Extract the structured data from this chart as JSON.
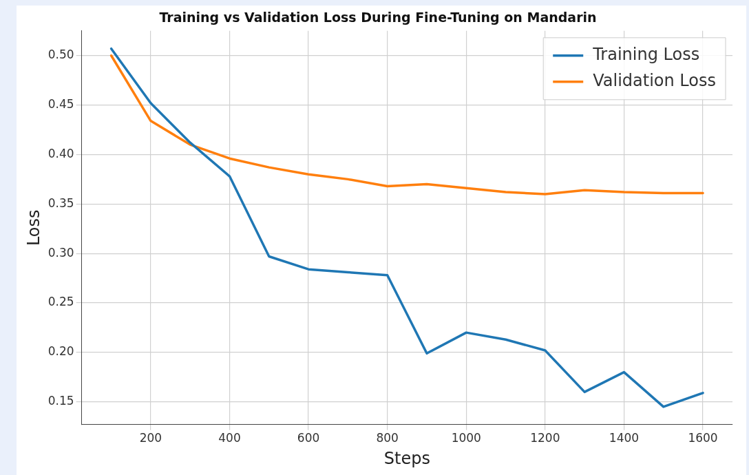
{
  "chart_data": {
    "type": "line",
    "title": "Training vs Validation Loss During Fine-Tuning on Mandarin",
    "xlabel": "Steps",
    "ylabel": "Loss",
    "x": [
      100,
      200,
      300,
      400,
      500,
      600,
      700,
      800,
      900,
      1000,
      1100,
      1200,
      1300,
      1400,
      1500,
      1600
    ],
    "series": [
      {
        "name": "Training Loss",
        "color": "#1f77b4",
        "values": [
          0.507,
          0.452,
          0.412,
          0.378,
          0.297,
          0.284,
          0.281,
          0.278,
          0.199,
          0.22,
          0.213,
          0.202,
          0.16,
          0.18,
          0.145,
          0.159
        ]
      },
      {
        "name": "Validation Loss",
        "color": "#ff7f0e",
        "values": [
          0.5,
          0.434,
          0.41,
          0.396,
          0.387,
          0.38,
          0.375,
          0.368,
          0.37,
          0.366,
          0.362,
          0.36,
          0.364,
          0.362,
          0.361,
          0.361
        ]
      }
    ],
    "xlim": [
      25,
      1675
    ],
    "xticks": [
      200,
      400,
      600,
      800,
      1000,
      1200,
      1400,
      1600
    ],
    "ylim": [
      0.127,
      0.525
    ],
    "yticks": [
      0.15,
      {
        "value": 0.2,
        "label": "0.20"
      },
      0.25,
      {
        "value": 0.3,
        "label": "0.30"
      },
      0.35,
      {
        "value": 0.4,
        "label": "0.40"
      },
      0.45,
      {
        "value": 0.5,
        "label": "0.50"
      }
    ],
    "grid": true,
    "legend": "top right",
    "marker": "none",
    "line_style": "solid"
  }
}
